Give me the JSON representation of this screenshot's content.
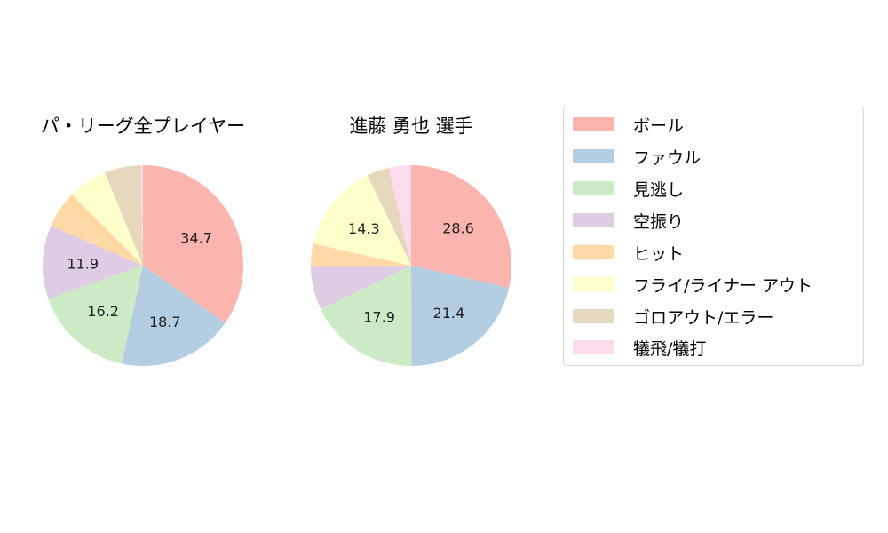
{
  "chart_data": [
    {
      "type": "pie",
      "title": "パ・リーグ全プレイヤー",
      "categories": [
        "ボール",
        "ファウル",
        "見逃し",
        "空振り",
        "ヒット",
        "フライ/ライナー アウト",
        "ゴロアウト/エラー",
        "犠飛/犠打"
      ],
      "values": [
        34.7,
        18.7,
        16.2,
        11.9,
        6.0,
        6.3,
        5.9,
        0.3
      ],
      "labels_shown": [
        "34.7",
        "18.7",
        "16.2",
        "11.9",
        "",
        "",
        "",
        ""
      ],
      "start_angle": 90,
      "direction": "clockwise"
    },
    {
      "type": "pie",
      "title": "進藤 勇也  選手",
      "categories": [
        "ボール",
        "ファウル",
        "見逃し",
        "空振り",
        "ヒット",
        "フライ/ライナー アウト",
        "ゴロアウト/エラー",
        "犠飛/犠打"
      ],
      "values": [
        28.6,
        21.4,
        17.9,
        7.1,
        3.6,
        14.3,
        3.6,
        3.6
      ],
      "labels_shown": [
        "28.6",
        "21.4",
        "17.9",
        "",
        "",
        "14.3",
        "",
        ""
      ],
      "start_angle": 90,
      "direction": "clockwise"
    }
  ],
  "legend": {
    "position": "right",
    "items": [
      {
        "label": "ボール",
        "color": "#fbb4ae"
      },
      {
        "label": "ファウル",
        "color": "#b3cde3"
      },
      {
        "label": "見逃し",
        "color": "#ccebc5"
      },
      {
        "label": "空振り",
        "color": "#decbe4"
      },
      {
        "label": "ヒット",
        "color": "#fed9a6"
      },
      {
        "label": "フライ/ライナー アウト",
        "color": "#ffffcc"
      },
      {
        "label": "ゴロアウト/エラー",
        "color": "#e5d8bd"
      },
      {
        "label": "犠飛/犠打",
        "color": "#fddaec"
      }
    ]
  },
  "titles": {
    "left": "パ・リーグ全プレイヤー",
    "right": "進藤 勇也  選手"
  }
}
